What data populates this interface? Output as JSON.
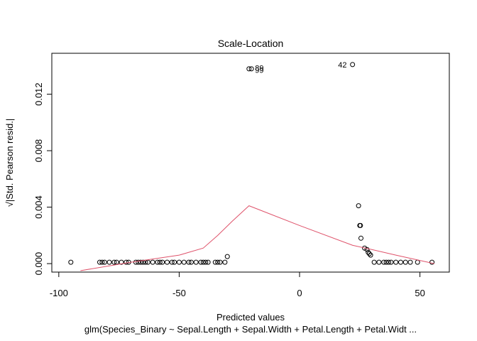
{
  "chart_data": {
    "type": "scatter",
    "title": "Scale-Location",
    "x_label": "Predicted values",
    "subtitle": "glm(Species_Binary ~ Sepal.Length + Sepal.Width + Petal.Length + Petal.Widt ...",
    "y_label": "√|Std. Pearson resid.|",
    "xlim": [
      -102.9,
      62.2
    ],
    "ylim": [
      -0.0006,
      0.0149
    ],
    "xticks": [
      -100,
      -50,
      0,
      50
    ],
    "yticks": [
      {
        "value": 0,
        "label": "0.000"
      },
      {
        "value": 0.004,
        "label": "0.004"
      },
      {
        "value": 0.008,
        "label": "0.008"
      },
      {
        "value": 0.012,
        "label": "0.012"
      }
    ],
    "series": [
      {
        "name": "residuals",
        "color": "#000000",
        "x": [
          -95,
          -83,
          -82,
          -81,
          -79,
          -77,
          -76,
          -74,
          -72,
          -71,
          -68,
          -67,
          -66,
          -65,
          -64,
          -63,
          -61,
          -59,
          -58,
          -57,
          -55,
          -53,
          -52,
          -50,
          -48,
          -46,
          -45,
          -43,
          -41,
          -40,
          -39,
          -38,
          -35,
          -34,
          -33,
          -31,
          -30,
          -21,
          -20,
          22,
          24.5,
          25,
          25.3,
          25.5,
          27,
          28,
          28.5,
          29,
          29.5,
          31,
          33,
          35,
          36,
          37,
          38,
          40,
          42,
          44,
          46,
          49,
          55
        ],
        "values": [
          0.0001,
          0.0001,
          0.0001,
          0.0001,
          0.0001,
          0.0001,
          0.0001,
          0.0001,
          0.0001,
          0.0001,
          0.0001,
          0.0001,
          0.0001,
          0.0001,
          0.0001,
          0.0001,
          0.0001,
          0.0001,
          0.0001,
          0.0001,
          0.0001,
          0.0001,
          0.0001,
          0.0001,
          0.0001,
          0.0001,
          0.0001,
          0.0001,
          0.0001,
          0.0001,
          0.0001,
          0.0001,
          0.0001,
          0.0001,
          0.0001,
          0.0001,
          0.0005,
          0.0138,
          0.0138,
          0.0141,
          0.0041,
          0.0027,
          0.0027,
          0.0018,
          0.0011,
          0.001,
          0.0008,
          0.0007,
          0.0006,
          0.0001,
          0.0001,
          0.0001,
          0.0001,
          0.0001,
          0.0001,
          0.0001,
          0.0001,
          0.0001,
          0.0001,
          0.0001,
          0.0001
        ]
      },
      {
        "name": "smoother",
        "color": "#df536b",
        "x": [
          -91,
          -70,
          -50,
          -40,
          -34,
          -28,
          -21,
          0,
          22,
          30,
          40,
          56
        ],
        "values": [
          -0.0005,
          0.0001,
          0.0006,
          0.0011,
          0.002,
          0.003,
          0.0041,
          0.0027,
          0.0013,
          0.001,
          0.0006,
          0.0
        ]
      }
    ],
    "annotations": [
      {
        "text": "89",
        "x": -18.5,
        "y": 0.01388
      },
      {
        "text": "99",
        "x": -18.5,
        "y": 0.01372
      },
      {
        "text": "42",
        "x": 16,
        "y": 0.0141
      }
    ]
  }
}
